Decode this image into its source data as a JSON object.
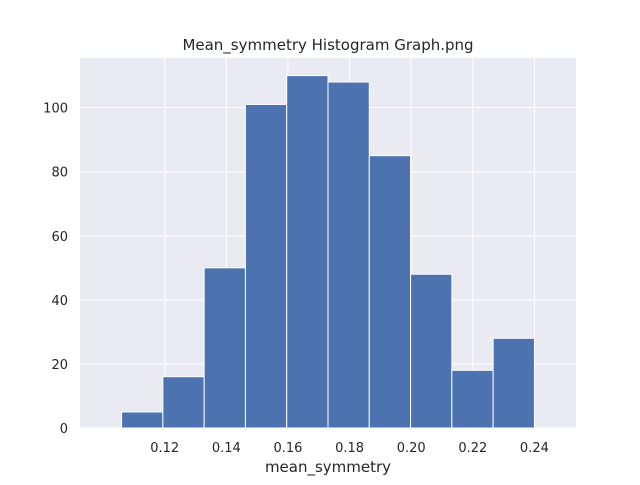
{
  "chart_data": {
    "type": "bar",
    "title": "Mean_symmetry Histogram Graph.png",
    "xlabel": "mean_symmetry",
    "ylabel": "",
    "bin_edges": [
      0.106,
      0.1194,
      0.1328,
      0.1462,
      0.1596,
      0.173,
      0.1864,
      0.1998,
      0.2132,
      0.2266,
      0.24
    ],
    "values": [
      5,
      16,
      50,
      101,
      110,
      108,
      85,
      48,
      18,
      28
    ],
    "xlim": [
      0.0925,
      0.2535
    ],
    "ylim": [
      0,
      115.5
    ],
    "xticks": [
      0.12,
      0.14,
      0.16,
      0.18,
      0.2,
      0.22,
      0.24
    ],
    "xtick_labels": [
      "0.12",
      "0.14",
      "0.16",
      "0.18",
      "0.20",
      "0.22",
      "0.24"
    ],
    "yticks": [
      0,
      20,
      40,
      60,
      80,
      100
    ],
    "ytick_labels": [
      "0",
      "20",
      "40",
      "60",
      "80",
      "100"
    ],
    "grid": true,
    "colors": {
      "bar": "#4c72b0",
      "bar_edge": "#ffffff",
      "plot_background": "#eaeaf2",
      "grid": "#ffffff",
      "text": "#262626"
    }
  }
}
